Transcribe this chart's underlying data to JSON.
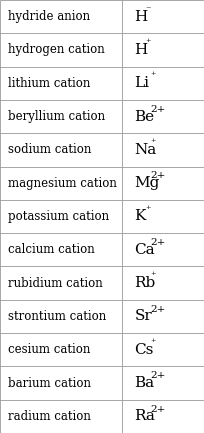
{
  "rows": [
    {
      "name": "hydride anion",
      "symbol": "H",
      "charge": "⁻"
    },
    {
      "name": "hydrogen cation",
      "symbol": "H",
      "charge": "⁺"
    },
    {
      "name": "lithium cation",
      "symbol": "Li",
      "charge": "⁺"
    },
    {
      "name": "beryllium cation",
      "symbol": "Be",
      "charge": "2+"
    },
    {
      "name": "sodium cation",
      "symbol": "Na",
      "charge": "⁺"
    },
    {
      "name": "magnesium cation",
      "symbol": "Mg",
      "charge": "2+"
    },
    {
      "name": "potassium cation",
      "symbol": "K",
      "charge": "⁺"
    },
    {
      "name": "calcium cation",
      "symbol": "Ca",
      "charge": "2+"
    },
    {
      "name": "rubidium cation",
      "symbol": "Rb",
      "charge": "⁺"
    },
    {
      "name": "strontium cation",
      "symbol": "Sr",
      "charge": "2+"
    },
    {
      "name": "cesium cation",
      "symbol": "Cs",
      "charge": "⁺"
    },
    {
      "name": "barium cation",
      "symbol": "Ba",
      "charge": "2+"
    },
    {
      "name": "radium cation",
      "symbol": "Ra",
      "charge": "2+"
    }
  ],
  "col_split": 0.595,
  "background_color": "#ffffff",
  "border_color": "#999999",
  "text_color": "#000000",
  "name_fontsize": 8.5,
  "symbol_fontsize": 11.0,
  "superscript_fontsize": 7.5
}
